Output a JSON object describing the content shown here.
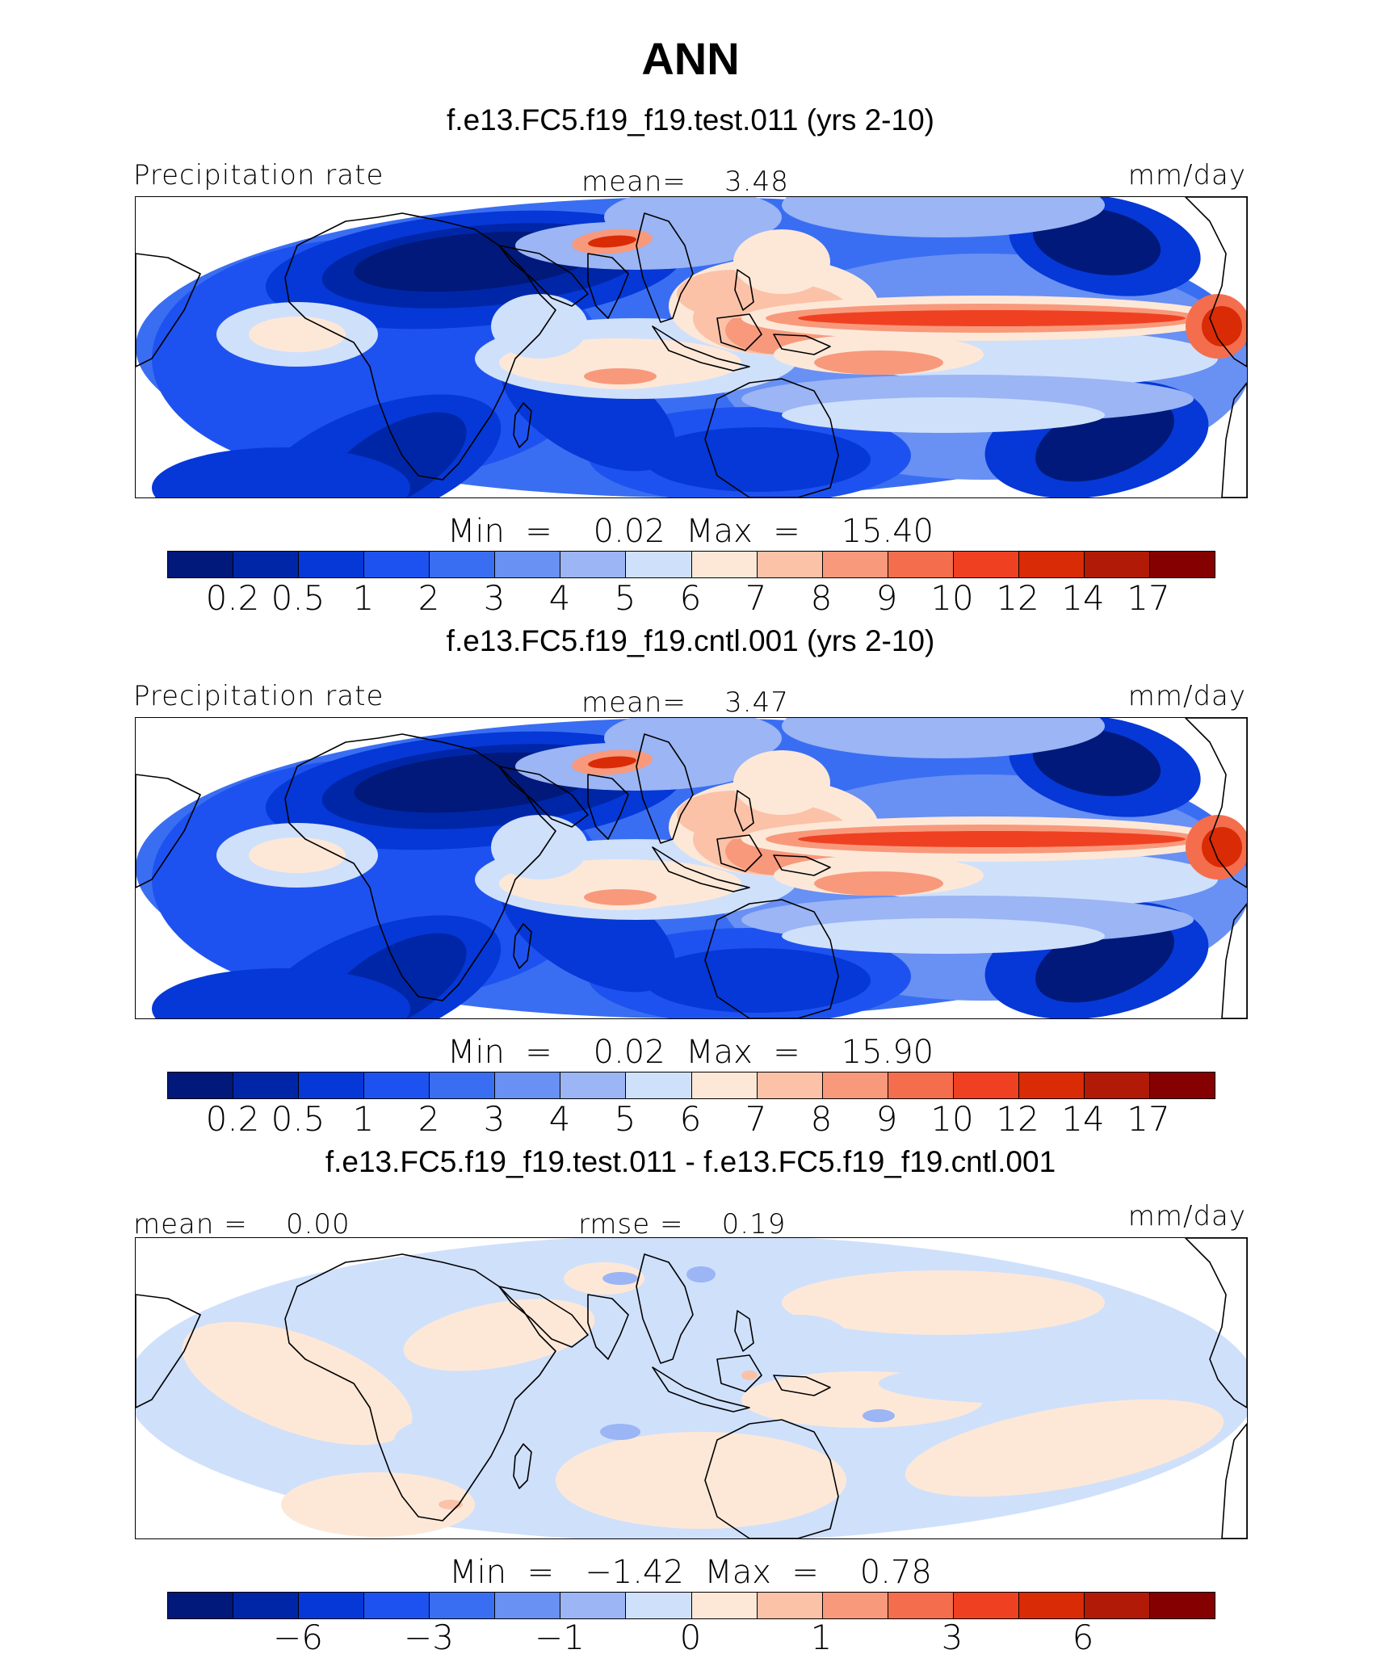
{
  "title": "ANN",
  "colors": [
    "#00197a",
    "#0026a8",
    "#0538d6",
    "#1e52f0",
    "#3a6ef2",
    "#6990f3",
    "#9bb5f5",
    "#cfe0fb",
    "#fde8d8",
    "#fbc2a8",
    "#f8997c",
    "#f46e4d",
    "#ef4122",
    "#d92b06",
    "#b01a06",
    "#850000"
  ],
  "panels": [
    {
      "case": "f.e13.FC5.f19_f19.test.011 (yrs 2-10)",
      "left_label": "Precipitation rate",
      "center_label": "mean=    3.48",
      "units": "mm/day",
      "minmax": "Min  =    0.02  Max  =    15.40",
      "cbar_labels": [
        "0.2",
        "0.5",
        "1",
        "2",
        "3",
        "4",
        "5",
        "6",
        "7",
        "8",
        "9",
        "10",
        "12",
        "14",
        "17"
      ]
    },
    {
      "case": "f.e13.FC5.f19_f19.cntl.001 (yrs 2-10)",
      "left_label": "Precipitation rate",
      "center_label": "mean=    3.47",
      "units": "mm/day",
      "minmax": "Min  =    0.02  Max  =    15.90",
      "cbar_labels": [
        "0.2",
        "0.5",
        "1",
        "2",
        "3",
        "4",
        "5",
        "6",
        "7",
        "8",
        "9",
        "10",
        "12",
        "14",
        "17"
      ]
    },
    {
      "case": "f.e13.FC5.f19_f19.test.011 - f.e13.FC5.f19_f19.cntl.001",
      "left_label": "mean =    0.00",
      "center_label": "rmse =    0.19",
      "units": "mm/day",
      "minmax": "Min  =   −1.42  Max  =    0.78",
      "cbar_labels": [
        "−6",
        "−3",
        "−1",
        "0",
        "1",
        "3",
        "6"
      ]
    }
  ],
  "chart_data": {
    "type": "heatmap",
    "title": "ANN",
    "variable": "Precipitation rate",
    "units": "mm/day",
    "maps": [
      {
        "name": "f.e13.FC5.f19_f19.test.011 (yrs 2-10)",
        "mean": 3.48,
        "min": 0.02,
        "max": 15.4,
        "levels": [
          0.2,
          0.5,
          1,
          2,
          3,
          4,
          5,
          6,
          7,
          8,
          9,
          10,
          12,
          14,
          17
        ]
      },
      {
        "name": "f.e13.FC5.f19_f19.cntl.001 (yrs 2-10)",
        "mean": 3.47,
        "min": 0.02,
        "max": 15.9,
        "levels": [
          0.2,
          0.5,
          1,
          2,
          3,
          4,
          5,
          6,
          7,
          8,
          9,
          10,
          12,
          14,
          17
        ]
      },
      {
        "name": "f.e13.FC5.f19_f19.test.011 - f.e13.FC5.f19_f19.cntl.001",
        "mean": 0.0,
        "rmse": 0.19,
        "min": -1.42,
        "max": 0.78,
        "levels": [
          -8,
          -6,
          -4,
          -3,
          -2,
          -1,
          -0.5,
          0,
          0.5,
          1,
          2,
          3,
          4,
          6,
          8
        ]
      }
    ]
  }
}
